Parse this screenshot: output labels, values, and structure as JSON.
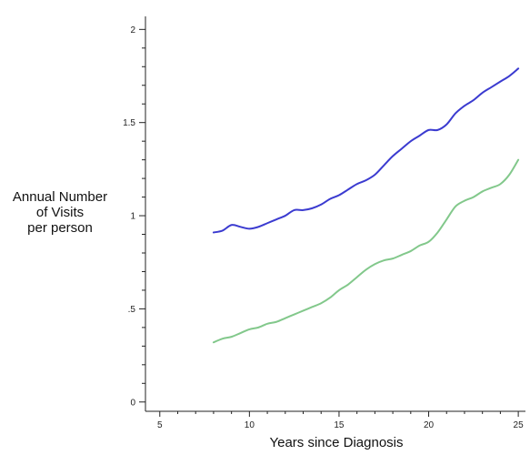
{
  "chart_data": {
    "type": "line",
    "title": "",
    "xlabel": "Years since Diagnosis",
    "ylabel_lines": [
      "Annual Number",
      "of Visits",
      "per person"
    ],
    "xlim": [
      4.2,
      25.4
    ],
    "ylim": [
      -0.05,
      2.07
    ],
    "x_ticks": [
      5,
      10,
      15,
      20,
      25
    ],
    "y_ticks": [
      0,
      0.5,
      1,
      1.5,
      2
    ],
    "x_tick_labels": [
      "5",
      "10",
      "15",
      "20",
      "25"
    ],
    "y_tick_labels": [
      "0",
      ".5",
      "1",
      "1.5",
      "2"
    ],
    "grid": false,
    "legend": "none",
    "series": [
      {
        "color": "#3b3bd0",
        "x": [
          8,
          8.5,
          9,
          9.5,
          10,
          10.5,
          11,
          11.5,
          12,
          12.5,
          13,
          13.5,
          14,
          14.5,
          15,
          15.5,
          16,
          16.5,
          17,
          17.5,
          18,
          18.5,
          19,
          19.5,
          20,
          20.5,
          21,
          21.5,
          22,
          22.5,
          23,
          23.5,
          24,
          24.5,
          25
        ],
        "values": [
          0.91,
          0.92,
          0.95,
          0.94,
          0.93,
          0.94,
          0.96,
          0.98,
          1.0,
          1.03,
          1.03,
          1.04,
          1.06,
          1.09,
          1.11,
          1.14,
          1.17,
          1.19,
          1.22,
          1.27,
          1.32,
          1.36,
          1.4,
          1.43,
          1.46,
          1.46,
          1.49,
          1.55,
          1.59,
          1.62,
          1.66,
          1.69,
          1.72,
          1.75,
          1.79
        ]
      },
      {
        "color": "#82c88b",
        "x": [
          8,
          8.5,
          9,
          9.5,
          10,
          10.5,
          11,
          11.5,
          12,
          12.5,
          13,
          13.5,
          14,
          14.5,
          15,
          15.5,
          16,
          16.5,
          17,
          17.5,
          18,
          18.5,
          19,
          19.5,
          20,
          20.5,
          21,
          21.5,
          22,
          22.5,
          23,
          23.5,
          24,
          24.5,
          25
        ],
        "values": [
          0.32,
          0.34,
          0.35,
          0.37,
          0.39,
          0.4,
          0.42,
          0.43,
          0.45,
          0.47,
          0.49,
          0.51,
          0.53,
          0.56,
          0.6,
          0.63,
          0.67,
          0.71,
          0.74,
          0.76,
          0.77,
          0.79,
          0.81,
          0.84,
          0.86,
          0.91,
          0.98,
          1.05,
          1.08,
          1.1,
          1.13,
          1.15,
          1.17,
          1.22,
          1.3
        ]
      }
    ]
  }
}
